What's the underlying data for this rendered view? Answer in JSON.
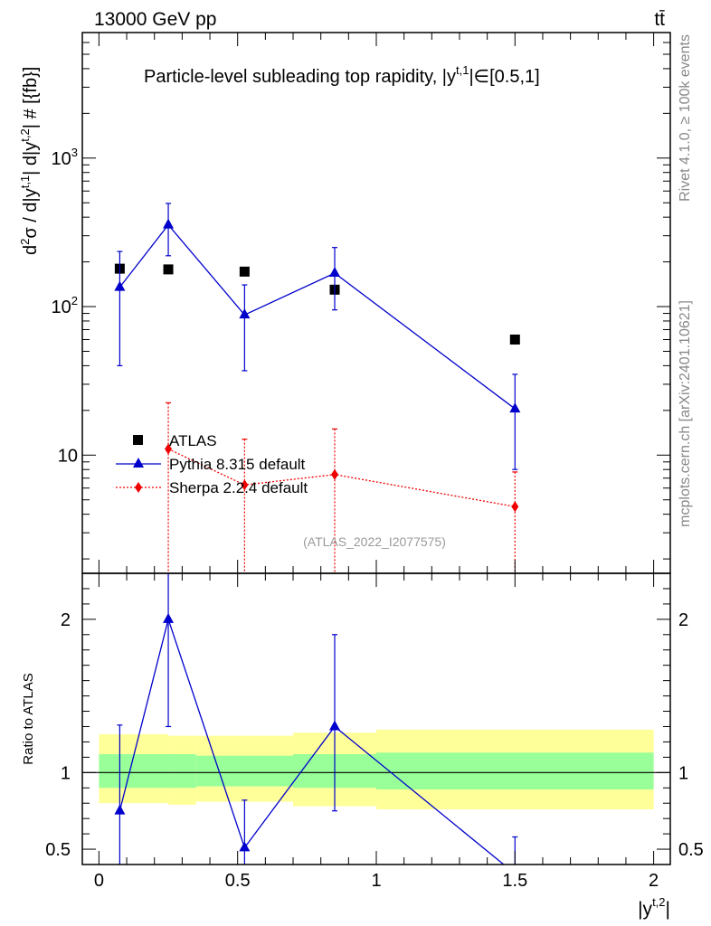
{
  "header": {
    "energy_label": "13000 GeV pp",
    "process_label": "tt̄"
  },
  "side_labels": {
    "rivet": "Rivet 4.1.0, ≥ 100k events",
    "mcplots": "mcplots.cern.ch [arXiv:2401.10621]"
  },
  "chart_data": [
    {
      "type": "scatter",
      "panel": "main",
      "title": "Particle-level subleading top rapidity, |y^{t,1}| ∈ [0.5,1]",
      "title_parts": {
        "prefix": "Particle-level subleading top rapidity, |y",
        "sup": "t,1",
        "suffix": "|∈[0.5,1]"
      },
      "ylabel": "d²σ / d|y^{t,1}| d|y^{t,2}| # [{fb}]",
      "ylabel_parts": {
        "a": "d",
        "a_sup": "2",
        "b": "σ / d|y",
        "b_sup": "t,1",
        "c": "| d|y",
        "c_sup": "t,2",
        "d": "| # [{fb}]"
      },
      "yscale": "log",
      "ylim": [
        1.6,
        7000
      ],
      "xlim": [
        -0.06,
        2.06
      ],
      "y_ticks": [
        {
          "value": 10,
          "label": "10"
        },
        {
          "value": 100,
          "label": "10",
          "sup": "2"
        },
        {
          "value": 1000,
          "label": "10",
          "sup": "3"
        }
      ],
      "watermark": "(ATLAS_2022_I2077575)",
      "legend_position": "center-left",
      "legend": [
        {
          "label": "ATLAS",
          "color": "#000000",
          "marker": "square"
        },
        {
          "label": "Pythia 8.315 default",
          "color": "#0000cc",
          "marker": "triangle"
        },
        {
          "label": "Sherpa 2.2.4 default",
          "color": "#ee0000",
          "marker": "diamond"
        }
      ],
      "series": [
        {
          "name": "ATLAS",
          "color": "#000000",
          "marker": "square",
          "x": [
            0.075,
            0.25,
            0.525,
            0.85,
            1.5
          ],
          "y": [
            180,
            178,
            172,
            130,
            60
          ],
          "yerr_low": [
            0,
            0,
            0,
            0,
            0
          ],
          "yerr_high": [
            0,
            0,
            0,
            0,
            0
          ]
        },
        {
          "name": "Pythia 8.315 default",
          "color": "#0000cc",
          "marker": "triangle",
          "line": "solid",
          "x": [
            0.075,
            0.25,
            0.525,
            0.85,
            1.5
          ],
          "y": [
            135,
            355,
            88,
            168,
            20.5
          ],
          "yerr_low": [
            95,
            135,
            51,
            73,
            12.5
          ],
          "yerr_high": [
            100,
            140,
            52,
            82,
            14.5
          ]
        },
        {
          "name": "Sherpa 2.2.4 default",
          "color": "#ee0000",
          "marker": "diamond",
          "line": "dotted",
          "x": [
            0.25,
            0.525,
            0.85,
            1.5
          ],
          "y": [
            11,
            6.3,
            7.4,
            4.5
          ],
          "yerr_low": [
            9.4,
            4.7,
            5.8,
            2.9
          ],
          "yerr_high": [
            11.5,
            6.5,
            7.6,
            3.2
          ]
        }
      ]
    },
    {
      "type": "scatter",
      "panel": "ratio",
      "ylabel": "Ratio to ATLAS",
      "xlabel": "|y^{t,2}|",
      "xlabel_parts": {
        "a": "|y",
        "a_sup": "t,2",
        "b": "|"
      },
      "xlim": [
        -0.06,
        2.06
      ],
      "ylim": [
        0.4,
        2.3
      ],
      "x_ticks": [
        {
          "value": 0,
          "label": "0"
        },
        {
          "value": 0.5,
          "label": "0.5"
        },
        {
          "value": 1,
          "label": "1"
        },
        {
          "value": 1.5,
          "label": "1.5"
        },
        {
          "value": 2,
          "label": "2"
        }
      ],
      "y_ticks": [
        {
          "value": 0.5,
          "label": "0.5"
        },
        {
          "value": 1,
          "label": "1"
        },
        {
          "value": 2,
          "label": "2"
        }
      ],
      "reference_line": 1,
      "bands": [
        {
          "x0": 0,
          "x1": 0.25,
          "stat_low": 0.9,
          "stat_high": 1.12,
          "tot_low": 0.8,
          "tot_high": 1.25
        },
        {
          "x0": 0.25,
          "x1": 0.35,
          "stat_low": 0.9,
          "stat_high": 1.12,
          "tot_low": 0.79,
          "tot_high": 1.24
        },
        {
          "x0": 0.35,
          "x1": 0.7,
          "stat_low": 0.91,
          "stat_high": 1.11,
          "tot_low": 0.81,
          "tot_high": 1.24
        },
        {
          "x0": 0.7,
          "x1": 1.0,
          "stat_low": 0.9,
          "stat_high": 1.12,
          "tot_low": 0.78,
          "tot_high": 1.26
        },
        {
          "x0": 1.0,
          "x1": 2.0,
          "stat_low": 0.89,
          "stat_high": 1.13,
          "tot_low": 0.76,
          "tot_high": 1.28
        }
      ],
      "series": [
        {
          "name": "Pythia 8.315 default",
          "color": "#0000cc",
          "marker": "triangle",
          "x": [
            0.075,
            0.25,
            0.525,
            0.85,
            1.5
          ],
          "y": [
            0.75,
            2.0,
            0.51,
            1.3,
            0.34
          ],
          "yerr_low": [
            0.55,
            0.7,
            0.3,
            0.55,
            0.2
          ],
          "yerr_high": [
            0.56,
            0.8,
            0.31,
            0.6,
            0.24
          ]
        }
      ]
    }
  ]
}
